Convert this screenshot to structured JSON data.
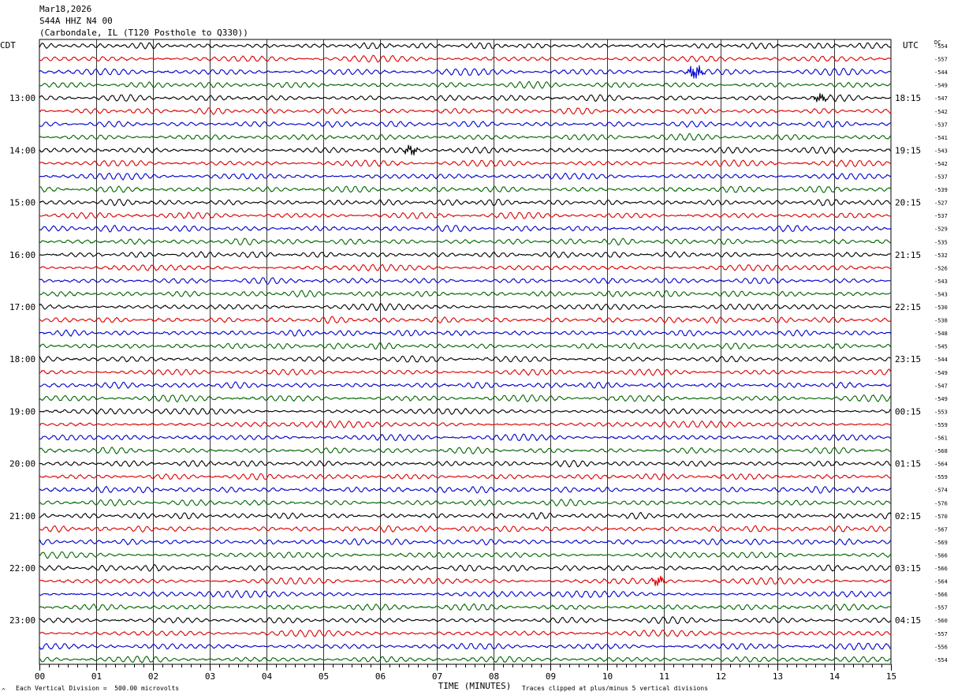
{
  "header": {
    "date": "Mar18,2026",
    "station": "S44A HHZ N4 00",
    "location": "(Carbondale, IL (T120 Posthole to Q330))"
  },
  "left_zone_label": "CDT",
  "right_zone_label": "UTC",
  "dc_label": "DC",
  "footer": {
    "scale_note": "Each Vertical Division =  500.00 microvolts",
    "xlabel": "TIME (MINUTES)",
    "clip_note": "Traces clipped at plus/minus 5 vertical divisions",
    "corner_mark": "^"
  },
  "colors": {
    "trace_cycle": [
      "#000000",
      "#dd0000",
      "#0000cc",
      "#006600"
    ],
    "grid": "#000000"
  },
  "chart_data": {
    "type": "line",
    "title": "",
    "xlabel": "TIME (MINUTES)",
    "ylabel": "",
    "xlim": [
      0,
      15
    ],
    "x_ticks": [
      "00",
      "01",
      "02",
      "03",
      "04",
      "05",
      "06",
      "07",
      "08",
      "09",
      "10",
      "11",
      "12",
      "13",
      "14",
      "15"
    ],
    "minutes_per_row": 15,
    "rows_per_hour": 4,
    "left_hour_labels": [
      "13:00",
      "14:00",
      "15:00",
      "16:00",
      "17:00",
      "18:00",
      "19:00",
      "20:00",
      "21:00",
      "22:00",
      "23:00"
    ],
    "right_hour_labels": [
      "18:15",
      "19:15",
      "20:15",
      "21:15",
      "22:15",
      "23:15",
      "00:15",
      "01:15",
      "02:15",
      "03:15",
      "04:15"
    ],
    "first_labeled_row": 4,
    "dc_offsets": [
      -554,
      -557,
      -544,
      -549,
      -547,
      -542,
      -537,
      -541,
      -543,
      -542,
      -537,
      -539,
      -527,
      -537,
      -529,
      -535,
      -532,
      -526,
      -543,
      -543,
      -530,
      -538,
      -548,
      -545,
      -544,
      -549,
      -547,
      -549,
      -553,
      -559,
      -561,
      -568,
      -564,
      -559,
      -574,
      -576,
      -570,
      -567,
      -569,
      -566,
      -566,
      -564,
      -566,
      -557,
      -560,
      -557,
      -556,
      -554
    ],
    "events": [
      {
        "row": 2,
        "minute": 11.55,
        "amplitude": 1.6
      },
      {
        "row": 8,
        "minute": 6.55,
        "amplitude": 0.9
      },
      {
        "row": 4,
        "minute": 13.75,
        "amplitude": 0.8
      },
      {
        "row": 41,
        "minute": 10.9,
        "amplitude": 0.8
      }
    ],
    "grid": true
  }
}
